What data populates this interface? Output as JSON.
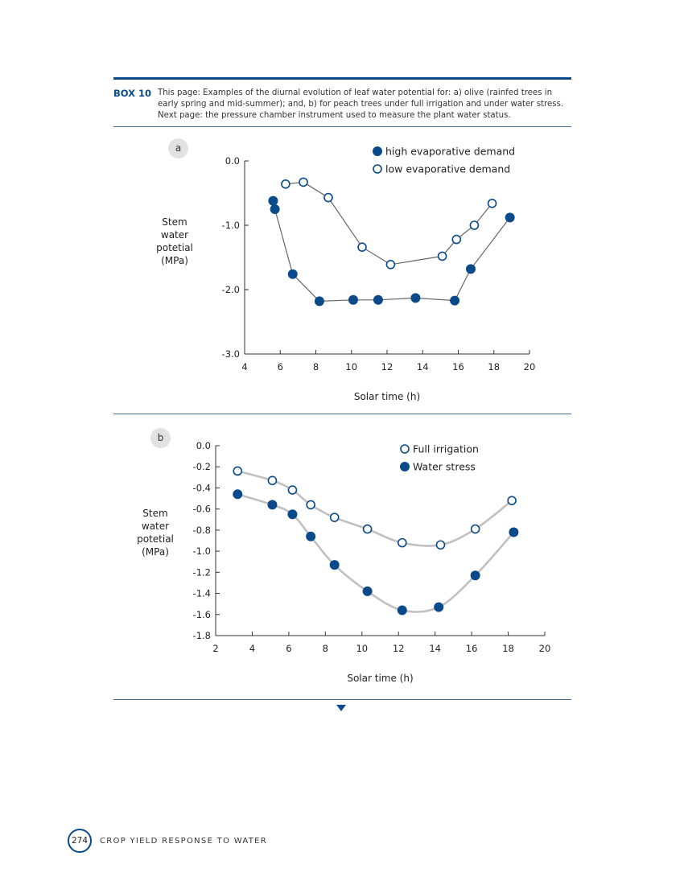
{
  "box": {
    "label": "BOX 10",
    "caption": "This page: Examples of the diurnal evolution of leaf water potential for: a) olive (rainfed trees in early spring and mid-summer); and, b) for peach trees under full irrigation and under water stress. Next page: the pressure chamber instrument used to measure the plant water status."
  },
  "footer": {
    "page_number": "274",
    "title": "CROP YIELD RESPONSE TO WATER"
  },
  "colors": {
    "accent": "#0b4a8a",
    "line_a": "#666666",
    "line_b": "#c0c0c0"
  },
  "chart_data": [
    {
      "panel": "a",
      "type": "line",
      "title": "",
      "xlabel": "Solar time (h)",
      "ylabel": [
        "Stem",
        "water",
        "potetial",
        "(MPa)"
      ],
      "xlim": [
        4,
        20
      ],
      "ylim": [
        -3.0,
        0.0
      ],
      "xticks": [
        4,
        6,
        8,
        10,
        12,
        14,
        16,
        18,
        20
      ],
      "xtick_labels": [
        "4",
        "6",
        "8",
        "10",
        "12",
        "14",
        "16",
        "18",
        "20"
      ],
      "yticks": [
        0.0,
        -1.0,
        -2.0,
        -3.0
      ],
      "ytick_labels": [
        "0.0",
        "-1.0",
        "-2.0",
        "-3.0"
      ],
      "legend_position": "top-right",
      "series": [
        {
          "name": "high evaporative demand",
          "marker": "filled",
          "x": [
            5.6,
            5.7,
            6.7,
            8.2,
            10.1,
            11.5,
            13.6,
            15.8,
            16.7,
            18.9
          ],
          "y": [
            -0.62,
            -0.75,
            -1.76,
            -2.18,
            -2.16,
            -2.16,
            -2.13,
            -2.17,
            -1.68,
            -0.88
          ]
        },
        {
          "name": "low evaporative demand",
          "marker": "open",
          "x": [
            6.3,
            7.3,
            8.7,
            10.6,
            12.2,
            15.1,
            15.9,
            16.9,
            17.9
          ],
          "y": [
            -0.36,
            -0.33,
            -0.57,
            -1.34,
            -1.61,
            -1.48,
            -1.22,
            -1.0,
            -0.66
          ]
        }
      ]
    },
    {
      "panel": "b",
      "type": "line",
      "title": "",
      "xlabel": "Solar time (h)",
      "ylabel": [
        "Stem",
        "water",
        "potetial",
        "(MPa)"
      ],
      "xlim": [
        2,
        20
      ],
      "ylim": [
        -1.8,
        0.0
      ],
      "xticks": [
        2,
        4,
        6,
        8,
        10,
        12,
        14,
        16,
        18,
        20
      ],
      "xtick_labels": [
        "2",
        "4",
        "6",
        "8",
        "10",
        "12",
        "14",
        "16",
        "18",
        "20"
      ],
      "yticks": [
        0.0,
        -0.2,
        -0.4,
        -0.6,
        -0.8,
        -1.0,
        -1.2,
        -1.4,
        -1.6,
        -1.8
      ],
      "ytick_labels": [
        "0.0",
        "-0.2",
        "-0.4",
        "-0.6",
        "-0.8",
        "-1.0",
        "-1.2",
        "-1.4",
        "-1.6",
        "-1.8"
      ],
      "legend_position": "top-right",
      "series": [
        {
          "name": "Full irrigation",
          "marker": "open",
          "x": [
            3.2,
            5.1,
            6.2,
            7.2,
            8.5,
            10.3,
            12.2,
            14.3,
            16.2,
            18.2
          ],
          "y": [
            -0.24,
            -0.33,
            -0.42,
            -0.56,
            -0.68,
            -0.79,
            -0.92,
            -0.94,
            -0.79,
            -0.52
          ]
        },
        {
          "name": "Water stress",
          "marker": "filled",
          "x": [
            3.2,
            5.1,
            6.2,
            7.2,
            8.5,
            10.3,
            12.2,
            14.2,
            16.2,
            18.3
          ],
          "y": [
            -0.46,
            -0.56,
            -0.65,
            -0.86,
            -1.13,
            -1.38,
            -1.56,
            -1.53,
            -1.23,
            -0.82
          ]
        }
      ]
    }
  ]
}
